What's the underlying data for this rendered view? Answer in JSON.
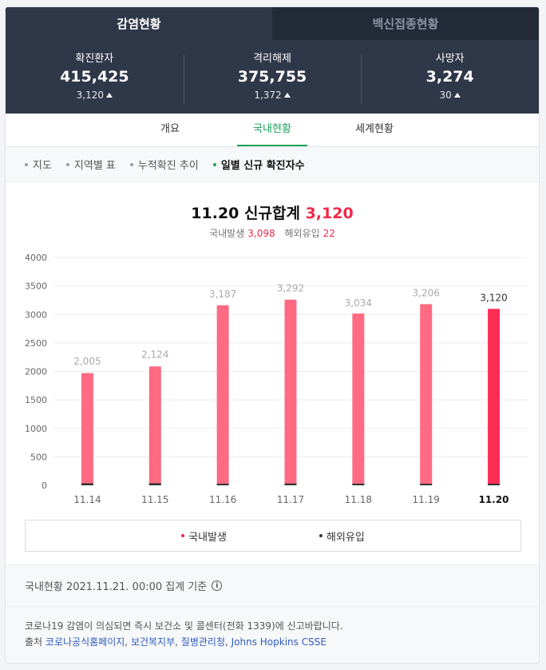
{
  "tabs": [
    {
      "label": "감염현황",
      "active": true
    },
    {
      "label": "백신접종현황",
      "active": false
    }
  ],
  "stats": [
    {
      "label": "확진환자",
      "value": "415,425",
      "delta": "3,120"
    },
    {
      "label": "격리해제",
      "value": "375,755",
      "delta": "1,372"
    },
    {
      "label": "사망자",
      "value": "3,274",
      "delta": "30"
    }
  ],
  "subnav": [
    {
      "label": "개요",
      "active": false
    },
    {
      "label": "국내현황",
      "active": true
    },
    {
      "label": "세계현황",
      "active": false
    }
  ],
  "filters": [
    {
      "label": "지도",
      "active": false
    },
    {
      "label": "지역별 표",
      "active": false
    },
    {
      "label": "누적확진 추이",
      "active": false
    },
    {
      "label": "일별 신규 확진자수",
      "active": true
    }
  ],
  "headline": {
    "date": "11.20",
    "label": "신규합계",
    "total": "3,120"
  },
  "breakdown": {
    "domestic_label": "국내발생",
    "domestic_value": "3,098",
    "overseas_label": "해외유입",
    "overseas_value": "22"
  },
  "chart_data": {
    "type": "bar",
    "stacked": true,
    "categories": [
      "11.14",
      "11.15",
      "11.16",
      "11.17",
      "11.18",
      "11.19",
      "11.20"
    ],
    "series": [
      {
        "name": "국내발생",
        "values": [
          1970,
          2088,
          3162,
          3260,
          3015,
          3180,
          3098
        ],
        "color": "#ff6b82"
      },
      {
        "name": "해외유입",
        "values": [
          35,
          36,
          25,
          32,
          19,
          26,
          22
        ],
        "color": "#333333"
      }
    ],
    "totals": [
      2005,
      2124,
      3187,
      3292,
      3034,
      3206,
      3120
    ],
    "total_labels": [
      "2,005",
      "2,124",
      "3,187",
      "3,292",
      "3,034",
      "3,206",
      "3,120"
    ],
    "highlight_index": 6,
    "highlight_color": "#ff2d55",
    "yticks": [
      0,
      500,
      1000,
      1500,
      2000,
      2500,
      3000,
      3500,
      4000
    ],
    "ylim": [
      0,
      4000
    ],
    "grid": true,
    "legend_position": "bottom"
  },
  "legend": [
    {
      "label": "국내발생",
      "color": "#f0294a"
    },
    {
      "label": "해외유입",
      "color": "#333333"
    }
  ],
  "notice": "국내현황 2021.11.21. 00:00 집계 기준",
  "info_icon": "info-icon",
  "footer": {
    "line1": "코로나19 감염이 의심되면 즉시 보건소 및 콜센터(전화 1339)에 신고바랍니다.",
    "source_prefix": "출처",
    "sources": [
      "코로나공식홈페이지",
      "보건복지부",
      "질병관리청",
      "Johns Hopkins CSSE"
    ]
  }
}
